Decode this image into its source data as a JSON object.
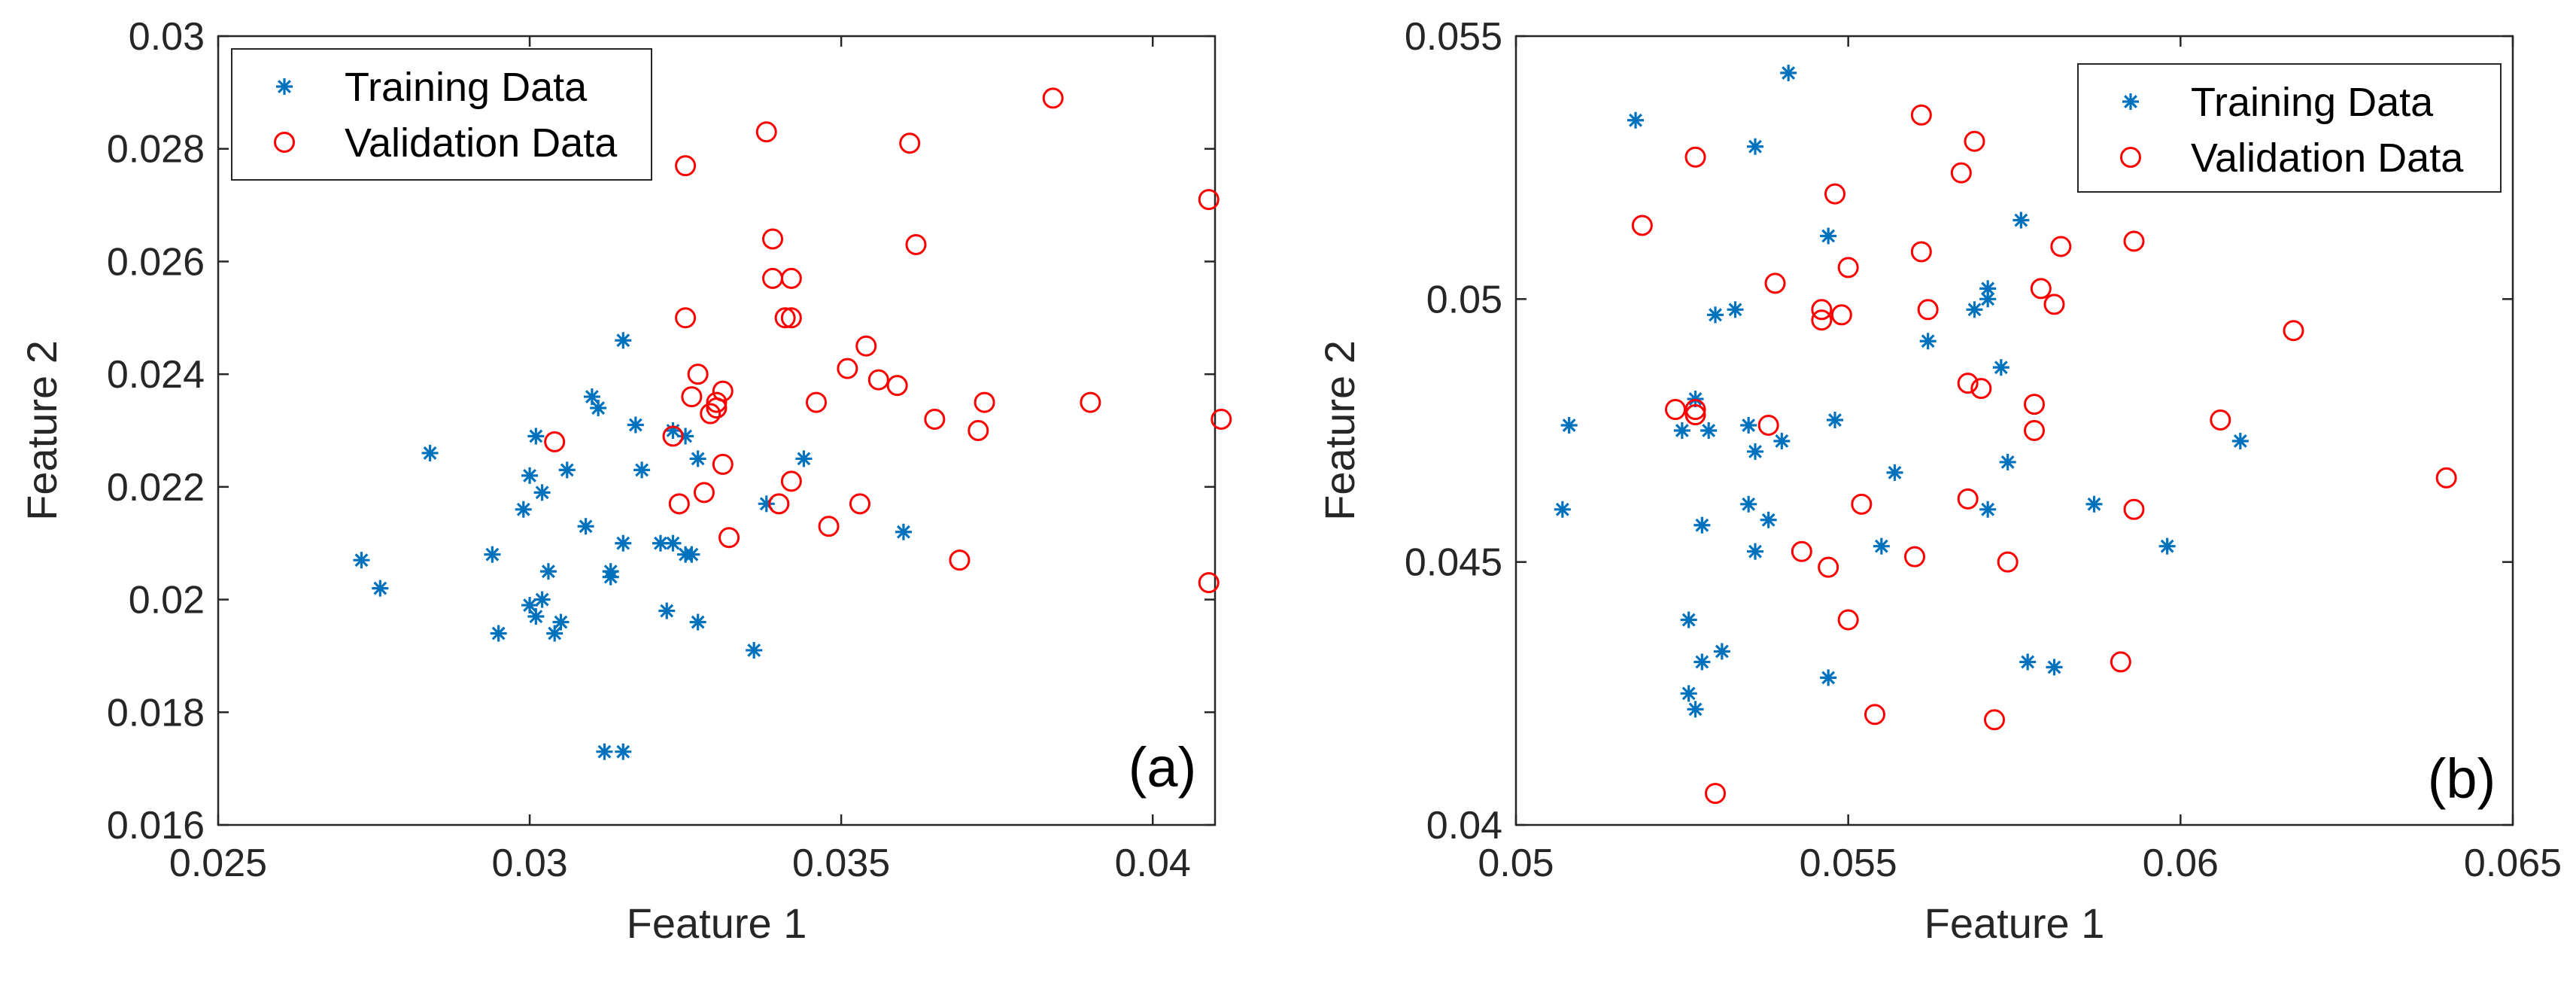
{
  "colors": {
    "training": "#0072BD",
    "validation": "#FF0000",
    "axis": "#262626",
    "background": "#FFFFFF"
  },
  "chart_data": [
    {
      "type": "scatter",
      "panel_label": "(a)",
      "xlabel": "Feature 1",
      "ylabel": "Feature 2",
      "xlim": [
        0.025,
        0.041
      ],
      "ylim": [
        0.016,
        0.03
      ],
      "xticks": [
        0.025,
        0.03,
        0.035,
        0.04
      ],
      "xtick_labels": [
        "0.025",
        "0.03",
        "0.035",
        "0.04"
      ],
      "yticks": [
        0.016,
        0.018,
        0.02,
        0.022,
        0.024,
        0.026,
        0.028,
        0.03
      ],
      "ytick_labels": [
        "0.016",
        "0.018",
        "0.02",
        "0.022",
        "0.024",
        "0.026",
        "0.028",
        "0.03"
      ],
      "legend_position": "top-left",
      "series": [
        {
          "name": "Training Data",
          "marker": "asterisk",
          "color": "#0072BD",
          "points": [
            [
              0.0273,
              0.0207
            ],
            [
              0.0276,
              0.0202
            ],
            [
              0.0284,
              0.0226
            ],
            [
              0.0295,
              0.0194
            ],
            [
              0.0294,
              0.0208
            ],
            [
              0.0299,
              0.0216
            ],
            [
              0.03,
              0.0222
            ],
            [
              0.0301,
              0.0229
            ],
            [
              0.0302,
              0.0219
            ],
            [
              0.03,
              0.0199
            ],
            [
              0.0301,
              0.0197
            ],
            [
              0.0302,
              0.02
            ],
            [
              0.0303,
              0.0205
            ],
            [
              0.0304,
              0.0194
            ],
            [
              0.0305,
              0.0196
            ],
            [
              0.0306,
              0.0223
            ],
            [
              0.0309,
              0.0213
            ],
            [
              0.031,
              0.0236
            ],
            [
              0.0311,
              0.0234
            ],
            [
              0.0313,
              0.0205
            ],
            [
              0.0313,
              0.0204
            ],
            [
              0.0315,
              0.0246
            ],
            [
              0.0315,
              0.021
            ],
            [
              0.0317,
              0.0231
            ],
            [
              0.0318,
              0.0223
            ],
            [
              0.0312,
              0.0173
            ],
            [
              0.0315,
              0.0173
            ],
            [
              0.0321,
              0.021
            ],
            [
              0.0322,
              0.0198
            ],
            [
              0.0323,
              0.023
            ],
            [
              0.0323,
              0.021
            ],
            [
              0.0325,
              0.0229
            ],
            [
              0.0325,
              0.0208
            ],
            [
              0.0326,
              0.0208
            ],
            [
              0.0327,
              0.0225
            ],
            [
              0.0327,
              0.0196
            ],
            [
              0.0336,
              0.0191
            ],
            [
              0.0338,
              0.0217
            ],
            [
              0.0344,
              0.0225
            ],
            [
              0.036,
              0.0212
            ]
          ]
        },
        {
          "name": "Validation Data",
          "marker": "circle",
          "color": "#FF0000",
          "points": [
            [
              0.0304,
              0.0228
            ],
            [
              0.0323,
              0.0229
            ],
            [
              0.0324,
              0.0217
            ],
            [
              0.0325,
              0.0277
            ],
            [
              0.0325,
              0.025
            ],
            [
              0.0326,
              0.0236
            ],
            [
              0.0327,
              0.024
            ],
            [
              0.0328,
              0.0219
            ],
            [
              0.0329,
              0.0233
            ],
            [
              0.033,
              0.0235
            ],
            [
              0.033,
              0.0234
            ],
            [
              0.0331,
              0.0224
            ],
            [
              0.0331,
              0.0237
            ],
            [
              0.0332,
              0.0211
            ],
            [
              0.0338,
              0.0283
            ],
            [
              0.0339,
              0.0264
            ],
            [
              0.0339,
              0.0257
            ],
            [
              0.034,
              0.0217
            ],
            [
              0.0341,
              0.025
            ],
            [
              0.0342,
              0.025
            ],
            [
              0.0342,
              0.0257
            ],
            [
              0.0342,
              0.0221
            ],
            [
              0.0346,
              0.0235
            ],
            [
              0.0348,
              0.0213
            ],
            [
              0.0351,
              0.0241
            ],
            [
              0.0353,
              0.0217
            ],
            [
              0.0354,
              0.0245
            ],
            [
              0.0356,
              0.0239
            ],
            [
              0.0359,
              0.0238
            ],
            [
              0.0361,
              0.0281
            ],
            [
              0.0362,
              0.0263
            ],
            [
              0.0365,
              0.0232
            ],
            [
              0.0369,
              0.0207
            ],
            [
              0.0372,
              0.023
            ],
            [
              0.0373,
              0.0235
            ],
            [
              0.0384,
              0.0289
            ],
            [
              0.039,
              0.0235
            ],
            [
              0.0409,
              0.0271
            ],
            [
              0.0409,
              0.0203
            ],
            [
              0.0411,
              0.0232
            ]
          ]
        }
      ]
    },
    {
      "type": "scatter",
      "panel_label": "(b)",
      "xlabel": "Feature 1",
      "ylabel": "Feature 2",
      "xlim": [
        0.05,
        0.065
      ],
      "ylim": [
        0.04,
        0.055
      ],
      "xticks": [
        0.05,
        0.055,
        0.06,
        0.065
      ],
      "xtick_labels": [
        "0.05",
        "0.055",
        "0.06",
        "0.065"
      ],
      "yticks": [
        0.04,
        0.045,
        0.05,
        0.055
      ],
      "ytick_labels": [
        "0.04",
        "0.045",
        "0.05",
        "0.055"
      ],
      "legend_position": "top-right",
      "series": [
        {
          "name": "Training Data",
          "marker": "asterisk",
          "color": "#0072BD",
          "points": [
            [
              0.0507,
              0.046
            ],
            [
              0.0508,
              0.0476
            ],
            [
              0.0518,
              0.0534
            ],
            [
              0.0525,
              0.0475
            ],
            [
              0.0526,
              0.0439
            ],
            [
              0.0526,
              0.0425
            ],
            [
              0.0527,
              0.0481
            ],
            [
              0.0527,
              0.0422
            ],
            [
              0.0528,
              0.0457
            ],
            [
              0.0528,
              0.0431
            ],
            [
              0.0529,
              0.0475
            ],
            [
              0.053,
              0.0497
            ],
            [
              0.0531,
              0.0433
            ],
            [
              0.0533,
              0.0498
            ],
            [
              0.0535,
              0.0476
            ],
            [
              0.0535,
              0.0461
            ],
            [
              0.0536,
              0.0452
            ],
            [
              0.0536,
              0.0471
            ],
            [
              0.0536,
              0.0529
            ],
            [
              0.0538,
              0.0458
            ],
            [
              0.054,
              0.0473
            ],
            [
              0.0541,
              0.0543
            ],
            [
              0.0547,
              0.0512
            ],
            [
              0.0547,
              0.0428
            ],
            [
              0.0548,
              0.0477
            ],
            [
              0.0555,
              0.0453
            ],
            [
              0.0557,
              0.0467
            ],
            [
              0.0562,
              0.0492
            ],
            [
              0.0569,
              0.0498
            ],
            [
              0.0571,
              0.05
            ],
            [
              0.0571,
              0.0502
            ],
            [
              0.0571,
              0.046
            ],
            [
              0.0573,
              0.0487
            ],
            [
              0.0574,
              0.0469
            ],
            [
              0.0576,
              0.0515
            ],
            [
              0.0577,
              0.0431
            ],
            [
              0.0581,
              0.043
            ],
            [
              0.0587,
              0.0461
            ],
            [
              0.0598,
              0.0453
            ],
            [
              0.0609,
              0.0473
            ]
          ]
        },
        {
          "name": "Validation Data",
          "marker": "circle",
          "color": "#FF0000",
          "points": [
            [
              0.0519,
              0.0514
            ],
            [
              0.0524,
              0.0479
            ],
            [
              0.0527,
              0.0527
            ],
            [
              0.0527,
              0.0479
            ],
            [
              0.0527,
              0.0478
            ],
            [
              0.053,
              0.0406
            ],
            [
              0.0538,
              0.0476
            ],
            [
              0.0539,
              0.0503
            ],
            [
              0.0543,
              0.0452
            ],
            [
              0.0546,
              0.0498
            ],
            [
              0.0546,
              0.0496
            ],
            [
              0.0547,
              0.0449
            ],
            [
              0.0548,
              0.052
            ],
            [
              0.0549,
              0.0497
            ],
            [
              0.055,
              0.0506
            ],
            [
              0.055,
              0.0439
            ],
            [
              0.0552,
              0.0461
            ],
            [
              0.0554,
              0.0421
            ],
            [
              0.056,
              0.0451
            ],
            [
              0.0561,
              0.0535
            ],
            [
              0.0561,
              0.0509
            ],
            [
              0.0562,
              0.0498
            ],
            [
              0.0567,
              0.0524
            ],
            [
              0.0568,
              0.0484
            ],
            [
              0.0568,
              0.0462
            ],
            [
              0.0569,
              0.053
            ],
            [
              0.057,
              0.0483
            ],
            [
              0.0572,
              0.042
            ],
            [
              0.0574,
              0.045
            ],
            [
              0.0578,
              0.048
            ],
            [
              0.0578,
              0.0475
            ],
            [
              0.0579,
              0.0502
            ],
            [
              0.0581,
              0.0499
            ],
            [
              0.0582,
              0.051
            ],
            [
              0.0591,
              0.0431
            ],
            [
              0.0593,
              0.046
            ],
            [
              0.0593,
              0.0511
            ],
            [
              0.0606,
              0.0477
            ],
            [
              0.0617,
              0.0494
            ],
            [
              0.064,
              0.0466
            ]
          ]
        }
      ]
    }
  ]
}
